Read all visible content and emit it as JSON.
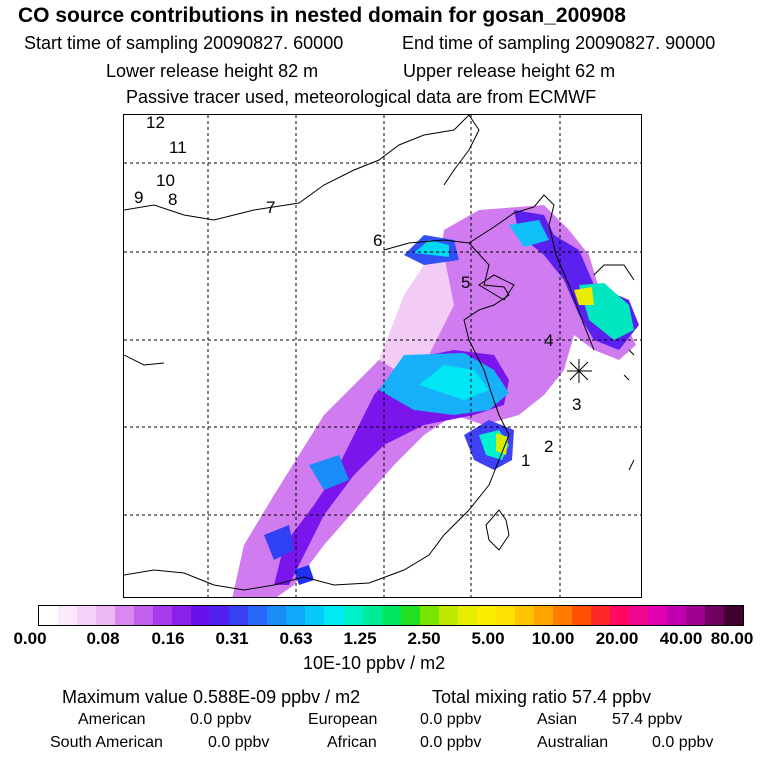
{
  "title": "CO  source contributions in nested domain for gosan_200908",
  "header": {
    "start_time": "Start time of sampling 20090827. 60000",
    "end_time": "End time of sampling 20090827. 90000",
    "lower_height": "Lower release height   82 m",
    "upper_height": "Upper release height   62 m",
    "tracer_note": "Passive tracer used, meteorological data are from ECMWF"
  },
  "map_labels": [
    "1",
    "2",
    "3",
    "4",
    "5",
    "6",
    "7",
    "8",
    "9",
    "10",
    "11",
    "12"
  ],
  "colorbar": {
    "ticks": [
      "0.00",
      "0.08",
      "0.16",
      "0.31",
      "0.63",
      "1.25",
      "2.50",
      "5.00",
      "10.00",
      "20.00",
      "40.00",
      "80.00"
    ],
    "colors": [
      "#ffffff",
      "#fbe8fb",
      "#f5d0f8",
      "#eeb8f4",
      "#d888f0",
      "#c060ec",
      "#a83cec",
      "#8a20ea",
      "#6a10ec",
      "#5020f0",
      "#3840f4",
      "#2868f8",
      "#1a8cf8",
      "#10a8f8",
      "#08c8f8",
      "#00ecf4",
      "#00f0c8",
      "#00ec98",
      "#00e860",
      "#20e020",
      "#78e400",
      "#c0e800",
      "#e8ec00",
      "#fcec00",
      "#ffe000",
      "#ffc400",
      "#ffa400",
      "#ff7c00",
      "#ff5000",
      "#ff2828",
      "#ff0a60",
      "#f00890",
      "#e000b0",
      "#c000b0",
      "#a00090",
      "#700060",
      "#400030"
    ],
    "units": "10E-10 ppbv / m2"
  },
  "footer": {
    "max_value": "Maximum value  0.588E-09 ppbv / m2",
    "total_mixing": "Total mixing ratio       57.4 ppbv",
    "american_label": "American",
    "american_value": "0.0 ppbv",
    "european_label": "European",
    "european_value": "0.0 ppbv",
    "asian_label": "Asian",
    "asian_value": "57.4 ppbv",
    "south_american_label": "South American",
    "south_american_value": "0.0 ppbv",
    "african_label": "African",
    "african_value": "0.0 ppbv",
    "australian_label": "Australian",
    "australian_value": "0.0 ppbv"
  }
}
